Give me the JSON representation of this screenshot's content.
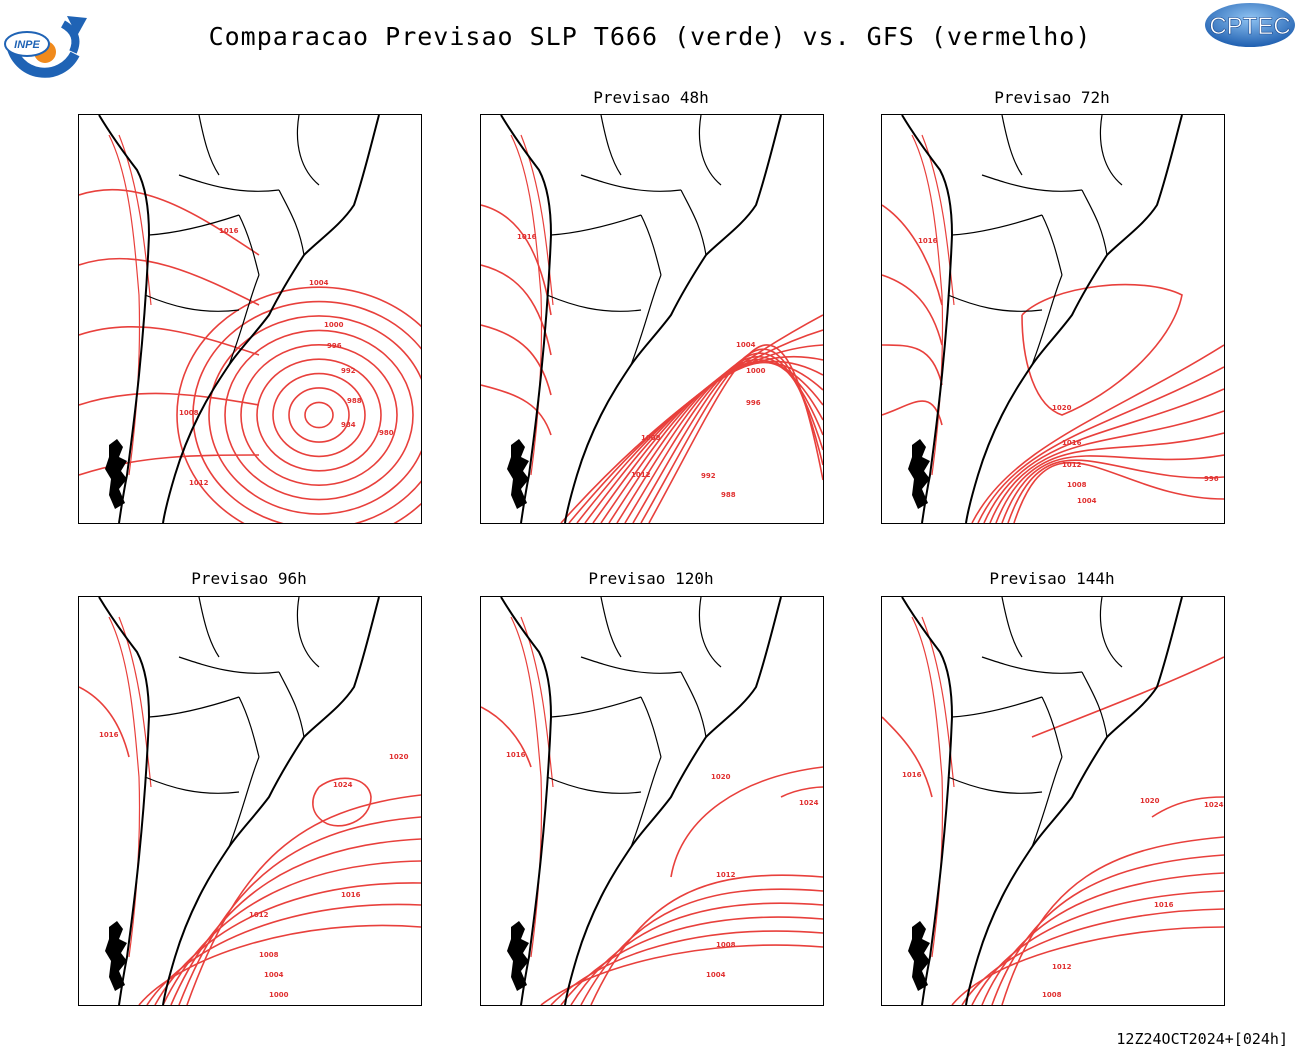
{
  "title": "Comparacao Previsao SLP T666 (verde) vs. GFS (vermelho)",
  "logos": {
    "left": "INPE",
    "right": "CPTEC"
  },
  "colors": {
    "gfs_contour": "#e8403c",
    "coast": "#000000",
    "logo_blue": "#1f63b5",
    "logo_orange": "#f08a1c"
  },
  "panels": [
    {
      "title": "",
      "labels": [
        "1016",
        "1008",
        "1012",
        "1004",
        "1000",
        "996",
        "992",
        "988",
        "984",
        "980"
      ]
    },
    {
      "title": "Previsao 48h",
      "labels": [
        "1016",
        "1012",
        "1008",
        "1004",
        "1000",
        "996",
        "992",
        "988"
      ]
    },
    {
      "title": "Previsao 72h",
      "labels": [
        "1016",
        "1020",
        "1016",
        "1012",
        "1008",
        "1004",
        "996"
      ]
    },
    {
      "title": "Previsao 96h",
      "labels": [
        "1016",
        "1020",
        "1024",
        "1016",
        "1012",
        "1008",
        "1004",
        "1000"
      ]
    },
    {
      "title": "Previsao 120h",
      "labels": [
        "1016",
        "1020",
        "1024",
        "1012",
        "1008",
        "1004"
      ]
    },
    {
      "title": "Previsao 144h",
      "labels": [
        "1016",
        "1020",
        "1024",
        "1016",
        "1012",
        "1008"
      ]
    }
  ],
  "footer": "12Z24OCT2024+[024h]"
}
